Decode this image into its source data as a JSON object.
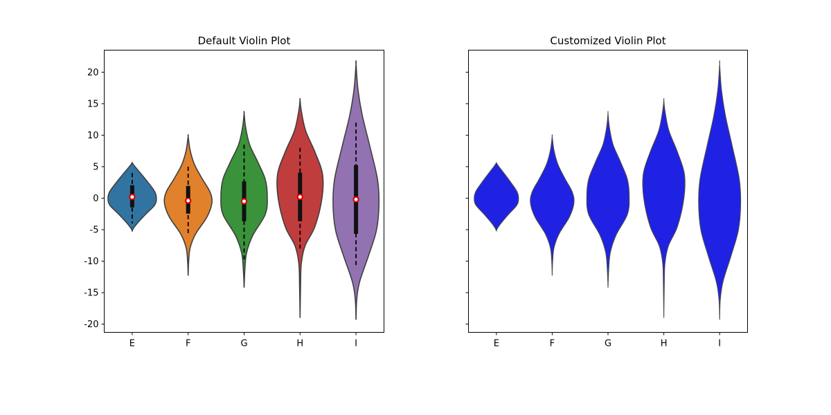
{
  "chart_data": [
    {
      "type": "violin",
      "title": "Default Violin Plot",
      "xlabel": "",
      "ylabel": "",
      "categories": [
        "E",
        "F",
        "G",
        "H",
        "I"
      ],
      "ylim": [
        -21.3,
        23.5
      ],
      "yticks": [
        20,
        15,
        10,
        5,
        0,
        -5,
        -10,
        -15,
        -20
      ],
      "show_ytick_labels": true,
      "inner": "box",
      "colors": [
        "#3274a1",
        "#e1812c",
        "#3a923a",
        "#c03d3e",
        "#9372b2"
      ],
      "violins": [
        {
          "category": "E",
          "min": -5.2,
          "max": 5.6,
          "q1": -1.4,
          "median": 0.2,
          "q3": 2.0,
          "whisker_low": -4.0,
          "whisker_high": 4.0
        },
        {
          "category": "F",
          "min": -12.3,
          "max": 9.8,
          "q1": -2.4,
          "median": -0.4,
          "q3": 1.9,
          "whisker_low": -5.8,
          "whisker_high": 5.0
        },
        {
          "category": "G",
          "min": -14.2,
          "max": 13.5,
          "q1": -3.6,
          "median": -0.5,
          "q3": 2.6,
          "whisker_low": -10.0,
          "whisker_high": 8.5
        },
        {
          "category": "H",
          "min": -19.0,
          "max": 15.6,
          "q1": -3.6,
          "median": 0.2,
          "q3": 4.0,
          "whisker_low": -8.0,
          "whisker_high": 8.0
        },
        {
          "category": "I",
          "min": -19.3,
          "max": 21.3,
          "q1": -5.6,
          "median": -0.2,
          "q3": 5.2,
          "whisker_low": -11.0,
          "whisker_high": 12.0
        }
      ]
    },
    {
      "type": "violin",
      "title": "Customized Violin Plot",
      "xlabel": "",
      "ylabel": "",
      "categories": [
        "E",
        "F",
        "G",
        "H",
        "I"
      ],
      "ylim": [
        -21.3,
        23.5
      ],
      "yticks": [
        20,
        15,
        10,
        5,
        0,
        -5,
        -10,
        -15,
        -20
      ],
      "show_ytick_labels": false,
      "inner": "none",
      "colors": [
        "#1f22e2",
        "#1f22e2",
        "#1f22e2",
        "#1f22e2",
        "#1f22e2"
      ],
      "violins": [
        {
          "category": "E",
          "min": -5.2,
          "max": 5.6
        },
        {
          "category": "F",
          "min": -12.3,
          "max": 9.8
        },
        {
          "category": "G",
          "min": -14.2,
          "max": 13.5
        },
        {
          "category": "H",
          "min": -19.0,
          "max": 15.6
        },
        {
          "category": "I",
          "min": -19.3,
          "max": 21.3
        }
      ]
    }
  ]
}
